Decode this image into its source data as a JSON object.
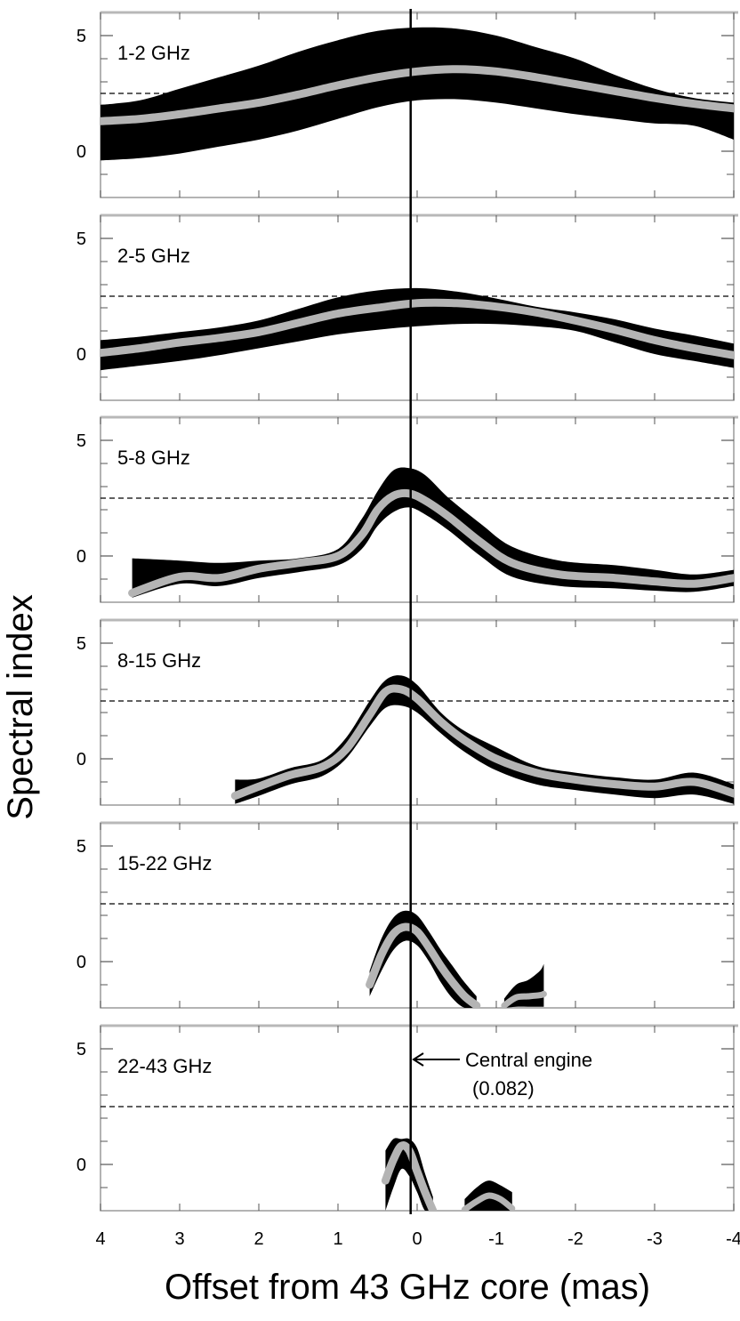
{
  "chart_data": {
    "type": "line",
    "title": "",
    "ylabel": "Spectral index",
    "xlabel": "Offset from 43 GHz core  (mas)",
    "xlim": [
      4,
      -4
    ],
    "xticks": [
      4,
      3,
      2,
      1,
      0,
      -1,
      -2,
      -3,
      -4
    ],
    "xtick_labels": [
      "4",
      "3",
      "2",
      "1",
      "0",
      "-1",
      "-2",
      "-3",
      "-4"
    ],
    "yticks": [
      0,
      5
    ],
    "ytick_labels": [
      "0",
      "5"
    ],
    "ylim": [
      -2.0,
      6.0
    ],
    "reference_line": {
      "type": "horizontal-dashed",
      "value": 2.5
    },
    "central_engine": {
      "x": 0.082,
      "label": "Central engine",
      "value_label": "(0.082)"
    },
    "panels": [
      {
        "label": "1-2 GHz",
        "x": [
          4.0,
          3.5,
          3.0,
          2.5,
          2.0,
          1.5,
          1.0,
          0.5,
          0.0,
          -0.5,
          -1.0,
          -1.5,
          -2.0,
          -2.5,
          -3.0,
          -3.5,
          -4.0
        ],
        "mean": [
          1.3,
          1.4,
          1.6,
          1.85,
          2.1,
          2.45,
          2.85,
          3.2,
          3.45,
          3.55,
          3.45,
          3.2,
          2.9,
          2.6,
          2.3,
          2.05,
          1.85
        ],
        "lower": [
          -0.4,
          -0.3,
          -0.1,
          0.2,
          0.5,
          0.9,
          1.4,
          1.9,
          2.2,
          2.25,
          2.1,
          1.85,
          1.6,
          1.4,
          1.2,
          1.1,
          0.5
        ],
        "upper": [
          2.0,
          2.2,
          2.7,
          3.2,
          3.7,
          4.3,
          4.8,
          5.2,
          5.35,
          5.3,
          5.0,
          4.5,
          4.0,
          3.3,
          2.7,
          2.3,
          2.1
        ]
      },
      {
        "label": "2-5 GHz",
        "x": [
          4.0,
          3.5,
          3.0,
          2.5,
          2.0,
          1.5,
          1.0,
          0.5,
          0.0,
          -0.5,
          -1.0,
          -1.5,
          -2.0,
          -2.5,
          -3.0,
          -3.5,
          -4.0
        ],
        "mean": [
          0.05,
          0.25,
          0.5,
          0.7,
          0.95,
          1.35,
          1.75,
          2.0,
          2.2,
          2.2,
          2.05,
          1.8,
          1.45,
          1.05,
          0.6,
          0.25,
          -0.05
        ],
        "lower": [
          -0.7,
          -0.5,
          -0.3,
          -0.05,
          0.25,
          0.55,
          0.85,
          1.05,
          1.2,
          1.3,
          1.3,
          1.2,
          1.0,
          0.5,
          0.0,
          -0.3,
          -0.6
        ],
        "upper": [
          0.6,
          0.75,
          0.95,
          1.15,
          1.45,
          1.95,
          2.45,
          2.75,
          2.85,
          2.7,
          2.4,
          2.05,
          1.8,
          1.5,
          1.1,
          0.8,
          0.45
        ]
      },
      {
        "label": "5-8 GHz",
        "x": [
          3.6,
          3.0,
          2.5,
          2.0,
          1.5,
          1.0,
          0.7,
          0.5,
          0.3,
          0.1,
          -0.1,
          -0.4,
          -0.8,
          -1.2,
          -1.8,
          -2.5,
          -3.0,
          -3.5,
          -4.0
        ],
        "mean": [
          -1.6,
          -0.9,
          -0.95,
          -0.55,
          -0.3,
          0.0,
          0.9,
          2.0,
          2.6,
          2.7,
          2.4,
          1.7,
          0.6,
          -0.3,
          -0.8,
          -0.95,
          -1.1,
          -1.2,
          -0.95
        ],
        "lower": [
          -1.8,
          -1.2,
          -1.3,
          -0.95,
          -0.7,
          -0.4,
          0.3,
          1.3,
          1.9,
          2.1,
          1.8,
          1.1,
          0.0,
          -0.9,
          -1.3,
          -1.4,
          -1.5,
          -1.55,
          -1.3
        ],
        "upper": [
          -0.1,
          -0.2,
          -0.3,
          -0.2,
          -0.1,
          0.3,
          1.6,
          2.8,
          3.7,
          3.8,
          3.5,
          2.5,
          1.4,
          0.4,
          -0.2,
          -0.4,
          -0.6,
          -0.8,
          -0.6
        ]
      },
      {
        "label": "8-15 GHz",
        "x": [
          2.3,
          2.0,
          1.6,
          1.2,
          0.9,
          0.6,
          0.4,
          0.2,
          0.0,
          -0.3,
          -0.6,
          -1.0,
          -1.5,
          -2.0,
          -2.5,
          -3.0,
          -3.5,
          -4.0
        ],
        "mean": [
          -1.6,
          -1.2,
          -0.7,
          -0.35,
          0.4,
          1.9,
          2.9,
          3.0,
          2.6,
          1.6,
          0.8,
          0.0,
          -0.6,
          -0.9,
          -1.1,
          -1.2,
          -1.0,
          -1.5
        ],
        "lower": [
          -1.95,
          -1.6,
          -1.1,
          -0.75,
          0.0,
          1.4,
          2.2,
          2.3,
          2.0,
          1.1,
          0.3,
          -0.5,
          -1.1,
          -1.35,
          -1.55,
          -1.7,
          -1.55,
          -1.95
        ],
        "upper": [
          -0.9,
          -0.85,
          -0.4,
          -0.05,
          0.9,
          2.5,
          3.4,
          3.6,
          3.2,
          2.0,
          1.2,
          0.5,
          -0.3,
          -0.6,
          -0.8,
          -0.9,
          -0.6,
          -1.1
        ]
      },
      {
        "label": "15-22 GHz",
        "x": [
          0.6,
          0.45,
          0.3,
          0.15,
          0.0,
          -0.15,
          -0.3,
          -0.45,
          -0.6,
          -0.75
        ],
        "mean": [
          -1.0,
          0.3,
          1.2,
          1.5,
          1.3,
          0.6,
          -0.2,
          -0.9,
          -1.5,
          -1.9
        ],
        "lower": [
          -1.5,
          -0.4,
          0.5,
          0.9,
          0.7,
          0.0,
          -0.9,
          -1.6,
          -2.0,
          -2.0
        ],
        "upper": [
          -0.4,
          1.0,
          1.9,
          2.2,
          2.0,
          1.3,
          0.5,
          -0.2,
          -0.9,
          -1.5
        ],
        "x2": [
          -1.1,
          -1.25,
          -1.4,
          -1.55,
          -1.6
        ],
        "mean2": [
          -1.9,
          -1.55,
          -1.5,
          -1.45,
          -1.4
        ],
        "lower2": [
          -2.0,
          -1.95,
          -1.95,
          -1.95,
          -1.95
        ],
        "upper2": [
          -1.6,
          -1.0,
          -0.8,
          -0.4,
          -0.1
        ]
      },
      {
        "label": "22-43 GHz",
        "x": [
          0.4,
          0.3,
          0.2,
          0.1,
          0.0,
          -0.1,
          -0.2
        ],
        "mean": [
          -0.7,
          0.2,
          0.8,
          0.6,
          -0.3,
          -1.2,
          -2.0
        ],
        "lower": [
          -2.0,
          -1.0,
          -0.2,
          -0.5,
          -1.2,
          -2.0,
          -2.0
        ],
        "upper": [
          0.6,
          1.1,
          1.1,
          1.1,
          0.7,
          -0.4,
          -1.4
        ],
        "x2": [
          -0.6,
          -0.75,
          -0.9,
          -1.05,
          -1.2
        ],
        "mean2": [
          -1.95,
          -1.6,
          -1.35,
          -1.5,
          -1.9
        ],
        "lower2": [
          -2.0,
          -2.0,
          -2.0,
          -2.0,
          -2.0
        ],
        "upper2": [
          -1.5,
          -1.0,
          -0.7,
          -0.9,
          -1.2
        ]
      }
    ]
  }
}
